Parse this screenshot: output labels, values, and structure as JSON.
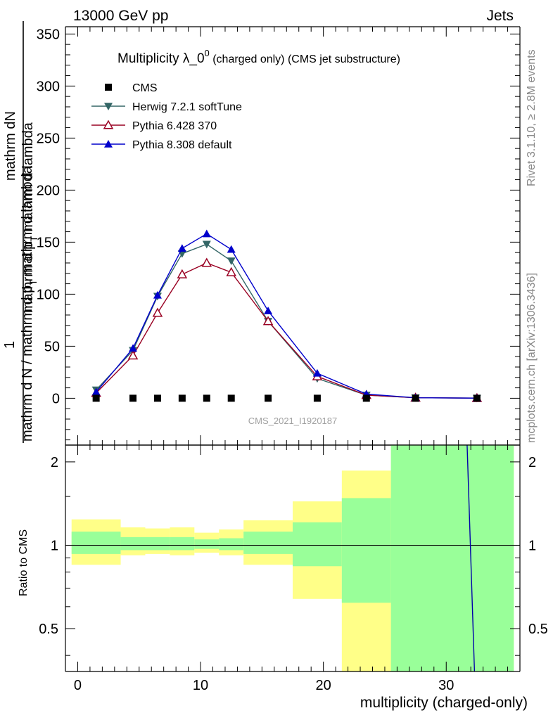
{
  "header": {
    "left": "13000 GeV pp",
    "right": "Jets"
  },
  "side": {
    "rivet": "Rivet 3.1.10, ≥ 2.8M events",
    "mcplots": "mcplots.cern.ch [arXiv:1306.3436]"
  },
  "chart_data": [
    {
      "type": "line",
      "title_main": "Multiplicity λ_0",
      "title_sup": "0",
      "title_suffix": " (charged only) (CMS jet substructure)",
      "ylabel_num": "1",
      "ylabel_num_tail": "mathrm dN",
      "ylabel_top": "mathrm d p",
      "ylabel_top_sub": "T",
      "ylabel_top_tail": " mathrm d lambda",
      "ylabel_den": "mathrm d N / mathrm d p",
      "ylabel_den_sub": "T",
      "ylabel_den_tail": " mathrm d lambda",
      "watermark": "CMS_2021_I1920187",
      "xlim": [
        -1,
        36
      ],
      "ylim": [
        -45,
        357
      ],
      "yticks": [
        0,
        50,
        100,
        150,
        200,
        250,
        300,
        350
      ],
      "ytick_labels": [
        "0",
        "50",
        "100",
        "150",
        "200",
        "250",
        "300",
        "350"
      ],
      "x": [
        1.5,
        4.5,
        6.5,
        8.5,
        10.5,
        12.5,
        15.5,
        19.5,
        23.5,
        27.5,
        32.5
      ],
      "series": [
        {
          "name": "CMS",
          "marker": "square",
          "color": "#000000",
          "values": [
            0,
            0,
            0,
            0,
            0,
            0,
            0,
            0,
            0,
            0,
            0
          ]
        },
        {
          "name": "Herwig 7.2.1 softTune",
          "marker": "triangle-down",
          "color": "#336666",
          "values": [
            8,
            46,
            98,
            139,
            148,
            132,
            74,
            19,
            3,
            0.5,
            0.1
          ]
        },
        {
          "name": "Pythia 6.428 370",
          "marker": "triangle-open",
          "color": "#990022",
          "values": [
            5,
            41,
            82,
            119,
            130,
            121,
            74,
            21,
            3,
            0.5,
            0.1
          ]
        },
        {
          "name": "Pythia 8.308 default",
          "marker": "triangle-up",
          "color": "#0000cc",
          "values": [
            6,
            48,
            99,
            144,
            158,
            143,
            84,
            24,
            4,
            0.5,
            0.1
          ]
        }
      ]
    },
    {
      "type": "ratio",
      "ylabel": "Ratio to CMS",
      "xlabel": "multiplicity (charged-only)",
      "ylim": [
        0.35,
        2.3
      ],
      "yticks": [
        0.5,
        1,
        2
      ],
      "ytick_labels": [
        "0.5",
        "1",
        "2"
      ],
      "xticks": [
        0,
        10,
        20,
        30
      ],
      "xtick_labels": [
        "0",
        "10",
        "20",
        "30"
      ],
      "bins": [
        -0.5,
        3.5,
        5.5,
        7.5,
        9.5,
        11.5,
        13.5,
        17.5,
        21.5,
        25.5,
        29.5,
        35.5
      ],
      "band_yellow_lo": [
        0.85,
        0.92,
        0.93,
        0.92,
        0.94,
        0.92,
        0.85,
        0.64,
        0.33,
        0.33,
        0.33
      ],
      "band_yellow_hi": [
        1.24,
        1.16,
        1.15,
        1.16,
        1.11,
        1.14,
        1.23,
        1.44,
        1.86,
        2.3,
        2.3
      ],
      "band_green_lo": [
        0.93,
        0.96,
        0.96,
        0.96,
        0.97,
        0.96,
        0.93,
        0.84,
        0.62,
        0.33,
        0.33
      ],
      "band_green_hi": [
        1.12,
        1.07,
        1.07,
        1.07,
        1.05,
        1.06,
        1.12,
        1.21,
        1.48,
        2.3,
        2.3
      ],
      "mc_line": {
        "color": "#0000aa",
        "points": [
          [
            31.7,
            2.3
          ],
          [
            32.3,
            0.35
          ]
        ]
      },
      "band_colors": {
        "yellow": "#ffff88",
        "green": "#99ff99"
      }
    }
  ]
}
